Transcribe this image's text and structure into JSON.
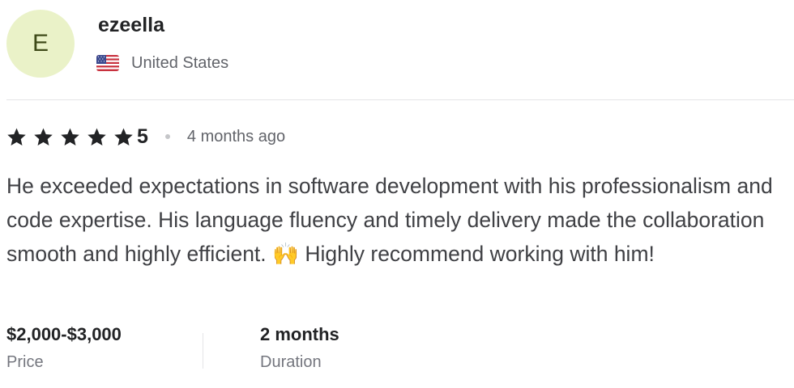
{
  "reviewer": {
    "avatar_initial": "E",
    "username": "ezeella",
    "country": "United States",
    "flag_icon": "us-flag-icon"
  },
  "rating": {
    "value": "5",
    "stars": 5,
    "time_ago": "4 months ago"
  },
  "review": {
    "text": "He exceeded expectations in software development with his professionalism and code expertise. His language fluency and timely delivery made the collaboration smooth and highly efficient. 🙌 Highly recommend working with him!"
  },
  "meta": {
    "price_value": "$2,000-$3,000",
    "price_label": "Price",
    "duration_value": "2 months",
    "duration_label": "Duration"
  },
  "colors": {
    "avatar_bg": "#eaf2c8",
    "avatar_text": "#3e4a18",
    "star": "#222325",
    "muted_text": "#62646a"
  }
}
